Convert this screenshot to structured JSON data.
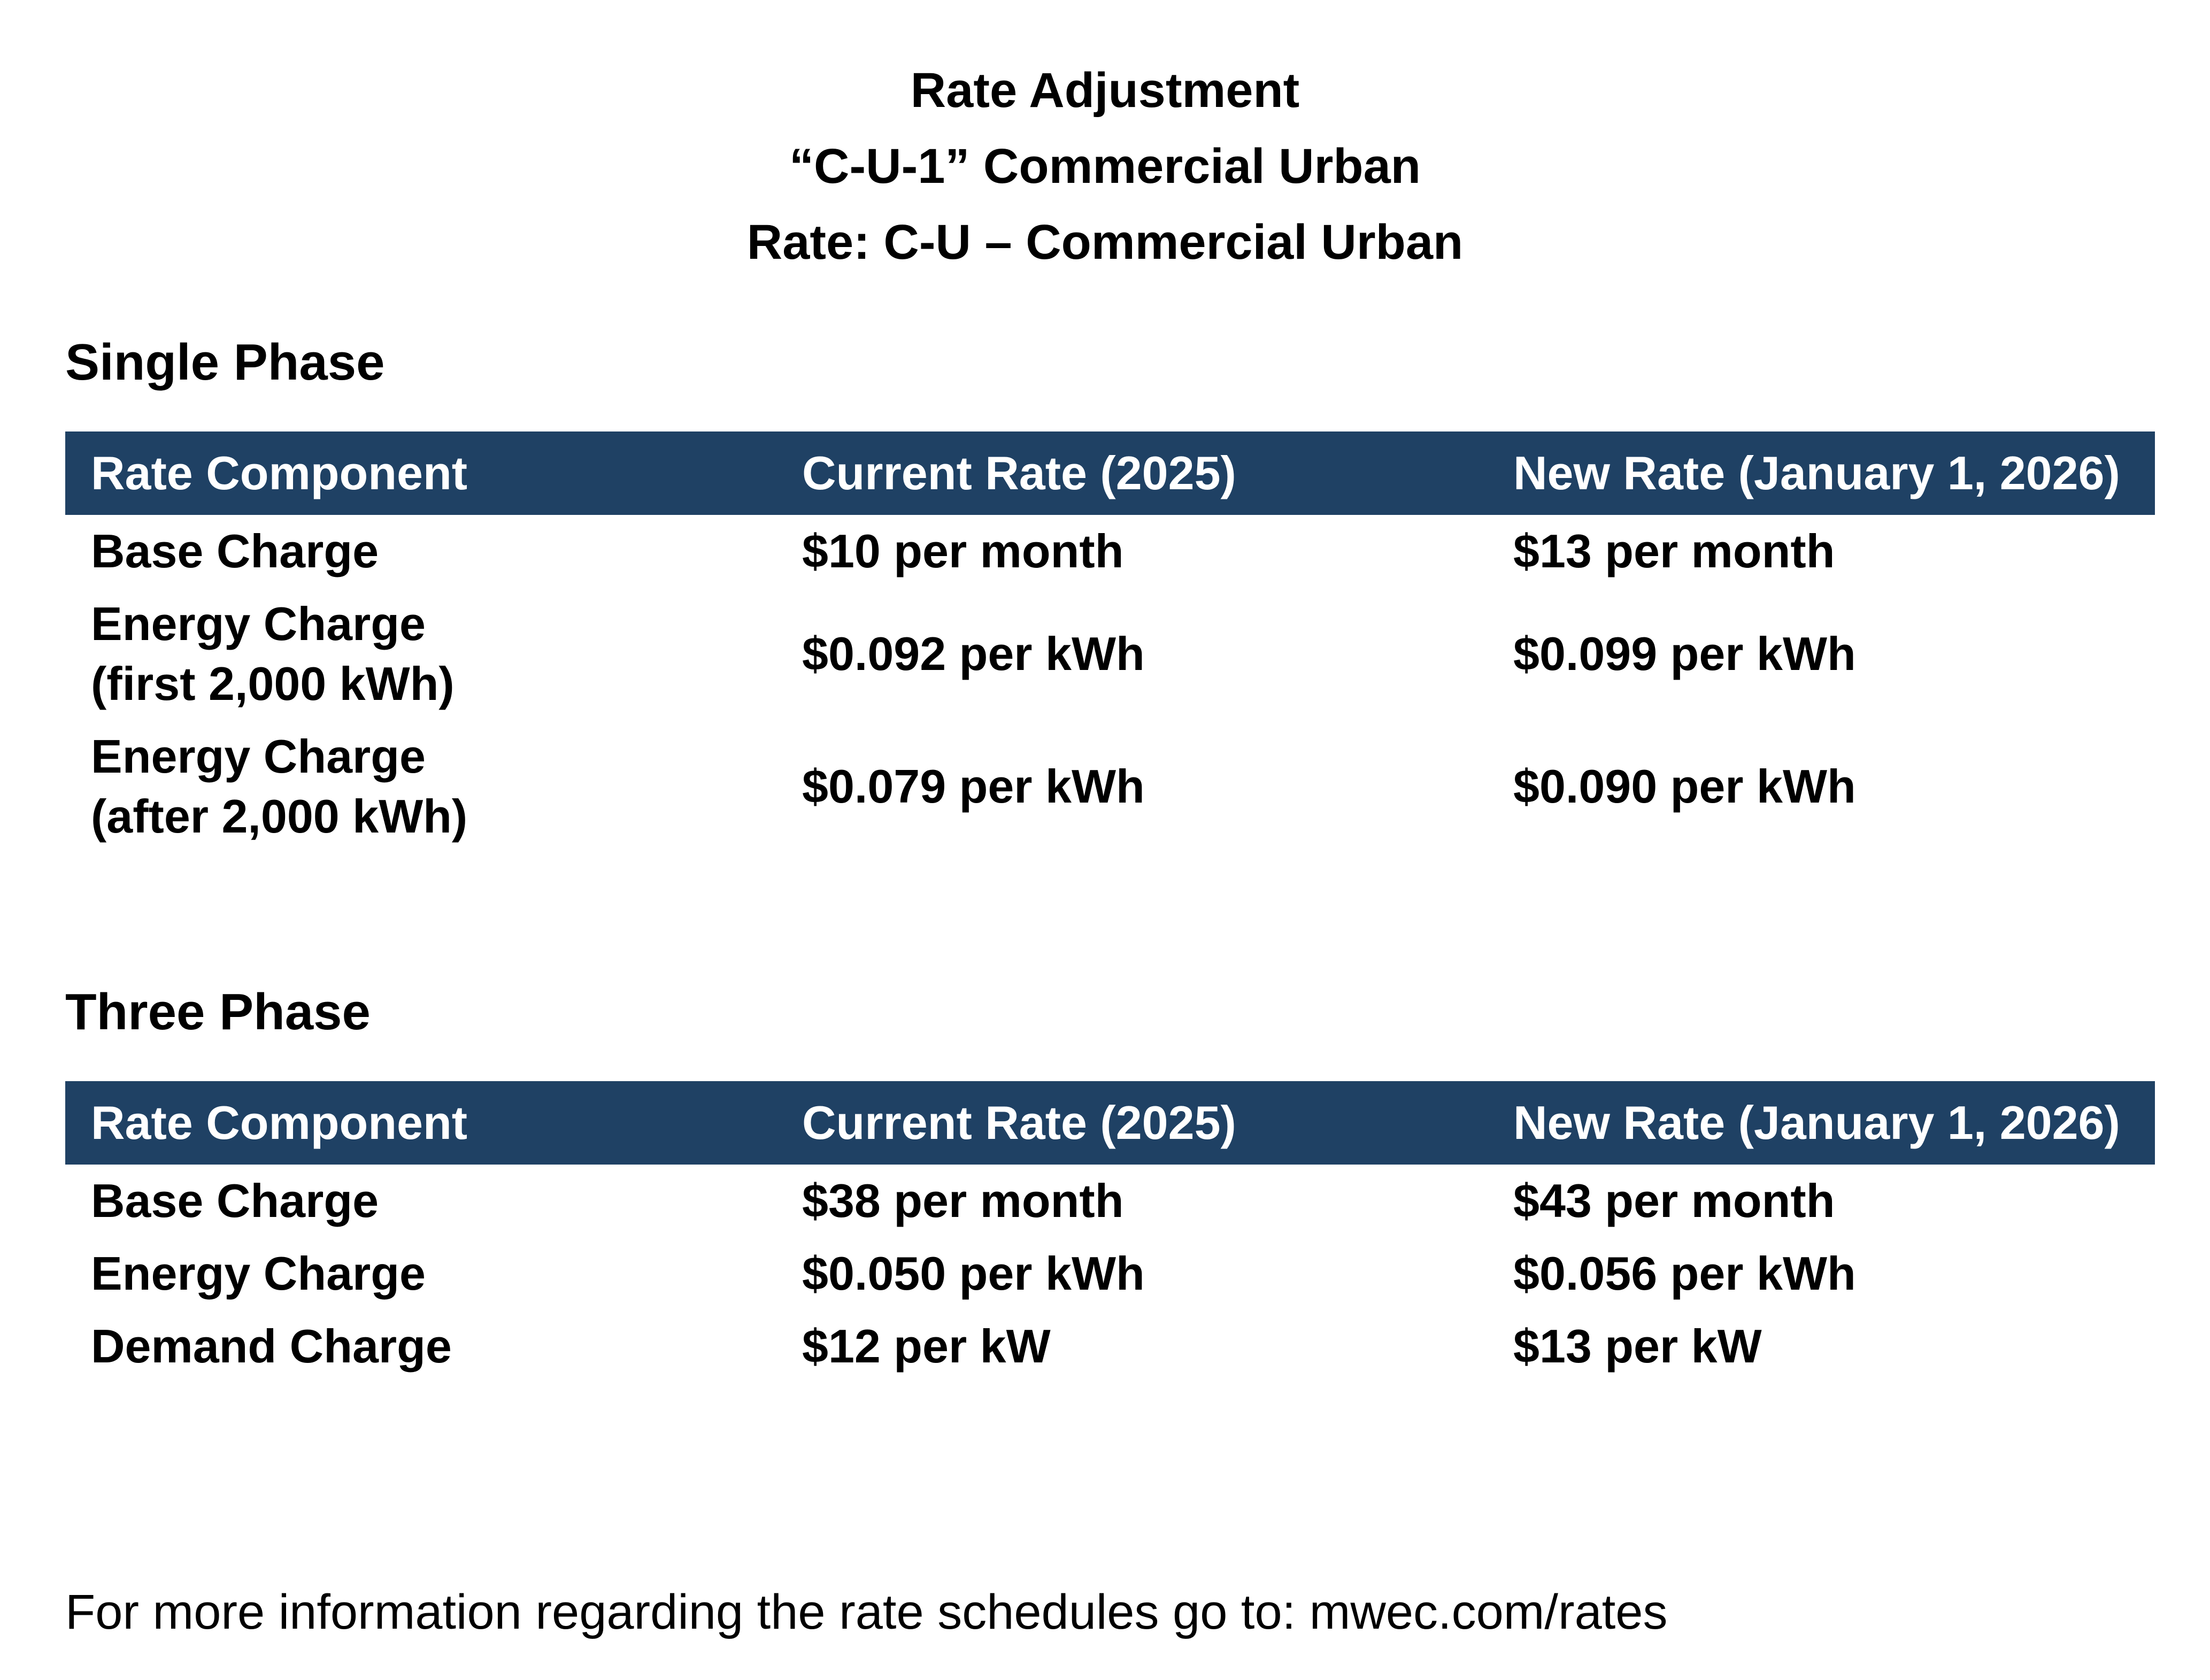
{
  "title": {
    "line1": "Rate Adjustment",
    "line2": "“C-U-1” Commercial Urban",
    "line3": "Rate: C-U – Commercial Urban"
  },
  "colors": {
    "header_bg": "#1F4164",
    "header_text": "#FFFFFF",
    "body_text": "#000000",
    "background": "#FFFFFF"
  },
  "sections": [
    {
      "heading": "Single Phase",
      "table": {
        "columns": [
          "Rate Component",
          "Current Rate (2025)",
          "New Rate (January 1, 2026)"
        ],
        "rows": [
          {
            "component": "Base Charge",
            "current": "$10 per month",
            "new": "$13 per month"
          },
          {
            "component": "Energy Charge\n(first 2,000 kWh)",
            "current": "$0.092 per kWh",
            "new": "$0.099 per kWh"
          },
          {
            "component": "Energy Charge\n(after 2,000 kWh)",
            "current": "$0.079 per kWh",
            "new": "$0.090 per kWh"
          }
        ]
      }
    },
    {
      "heading": "Three Phase",
      "table": {
        "columns": [
          "Rate Component",
          "Current Rate (2025)",
          "New Rate (January 1, 2026)"
        ],
        "rows": [
          {
            "component": "Base Charge",
            "current": "$38 per month",
            "new": "$43 per month"
          },
          {
            "component": "Energy Charge",
            "current": "$0.050 per kWh",
            "new": "$0.056 per kWh"
          },
          {
            "component": "Demand Charge",
            "current": "$12 per kW",
            "new": "$13 per kW"
          }
        ]
      }
    }
  ],
  "footer": {
    "text_prefix": "For more information regarding the rate schedules go to: ",
    "link_text": "mwec.com/rates"
  }
}
